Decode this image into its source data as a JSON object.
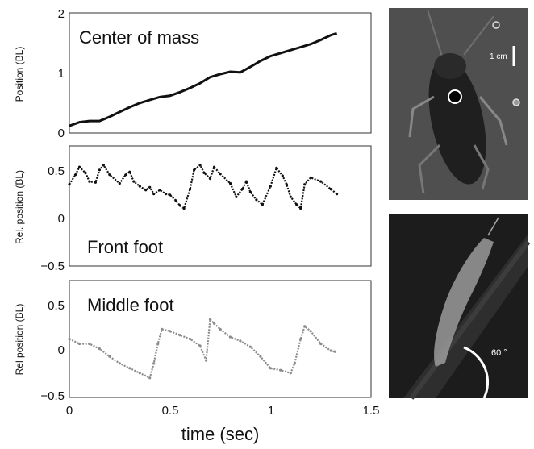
{
  "chart_data": [
    {
      "type": "line",
      "title": "Center of mass",
      "ylabel": "Position (BL)",
      "xlim": [
        0,
        1.5
      ],
      "ylim": [
        0,
        2
      ],
      "yticks": [
        "0",
        "1",
        "2"
      ],
      "series": [
        {
          "color": "#111111",
          "x": [
            0,
            0.05,
            0.1,
            0.15,
            0.2,
            0.25,
            0.3,
            0.35,
            0.4,
            0.45,
            0.5,
            0.55,
            0.6,
            0.65,
            0.7,
            0.75,
            0.8,
            0.85,
            0.9,
            0.95,
            1.0,
            1.05,
            1.1,
            1.15,
            1.2,
            1.25,
            1.3,
            1.33
          ],
          "y": [
            0.12,
            0.18,
            0.2,
            0.2,
            0.27,
            0.35,
            0.43,
            0.5,
            0.55,
            0.6,
            0.62,
            0.68,
            0.75,
            0.83,
            0.93,
            0.98,
            1.02,
            1.01,
            1.1,
            1.2,
            1.28,
            1.33,
            1.38,
            1.43,
            1.48,
            1.55,
            1.63,
            1.66
          ]
        }
      ]
    },
    {
      "type": "scatter",
      "title": "Front foot",
      "ylabel": "Rel. position (BL)",
      "xlim": [
        0,
        1.5
      ],
      "ylim": [
        -0.5,
        0.75
      ],
      "yticks": [
        "0.5",
        "0",
        "−0.5"
      ],
      "series": [
        {
          "color": "#111111",
          "x": [
            0,
            0.03,
            0.05,
            0.08,
            0.1,
            0.13,
            0.15,
            0.17,
            0.2,
            0.25,
            0.28,
            0.3,
            0.32,
            0.35,
            0.38,
            0.4,
            0.42,
            0.45,
            0.48,
            0.5,
            0.53,
            0.55,
            0.57,
            0.6,
            0.62,
            0.65,
            0.67,
            0.7,
            0.72,
            0.75,
            0.8,
            0.83,
            0.86,
            0.88,
            0.9,
            0.93,
            0.96,
            1.0,
            1.03,
            1.06,
            1.08,
            1.1,
            1.13,
            1.15,
            1.17,
            1.2,
            1.25,
            1.3,
            1.33
          ],
          "y": [
            0.35,
            0.45,
            0.53,
            0.47,
            0.38,
            0.37,
            0.5,
            0.55,
            0.45,
            0.36,
            0.45,
            0.48,
            0.38,
            0.33,
            0.29,
            0.32,
            0.25,
            0.29,
            0.25,
            0.24,
            0.18,
            0.13,
            0.1,
            0.3,
            0.5,
            0.55,
            0.47,
            0.41,
            0.53,
            0.46,
            0.36,
            0.22,
            0.3,
            0.38,
            0.27,
            0.19,
            0.14,
            0.33,
            0.52,
            0.44,
            0.35,
            0.22,
            0.14,
            0.1,
            0.35,
            0.42,
            0.38,
            0.3,
            0.25
          ]
        }
      ]
    },
    {
      "type": "scatter",
      "title": "Middle foot",
      "ylabel": "Rel position (BL)",
      "xlabel": "time (sec)",
      "xlim": [
        0,
        1.5
      ],
      "ylim": [
        -0.5,
        0.7
      ],
      "xticks": [
        "0",
        "0.5",
        "1",
        "1.5"
      ],
      "yticks": [
        "0.5",
        "0",
        "−0.5"
      ],
      "series": [
        {
          "color": "#8c8c8c",
          "x": [
            0,
            0.05,
            0.1,
            0.15,
            0.2,
            0.25,
            0.3,
            0.35,
            0.4,
            0.42,
            0.44,
            0.46,
            0.5,
            0.55,
            0.6,
            0.65,
            0.68,
            0.7,
            0.72,
            0.75,
            0.8,
            0.85,
            0.9,
            0.95,
            1.0,
            1.05,
            1.1,
            1.12,
            1.15,
            1.17,
            1.2,
            1.25,
            1.3,
            1.32
          ],
          "y": [
            0.1,
            0.05,
            0.05,
            0.0,
            -0.08,
            -0.15,
            -0.2,
            -0.25,
            -0.3,
            -0.15,
            0.05,
            0.2,
            0.18,
            0.14,
            0.1,
            0.03,
            -0.12,
            0.3,
            0.26,
            0.2,
            0.12,
            0.08,
            0.02,
            -0.08,
            -0.2,
            -0.22,
            -0.25,
            -0.15,
            0.1,
            0.23,
            0.18,
            0.05,
            -0.02,
            -0.03
          ]
        }
      ]
    }
  ],
  "photos": {
    "top": {
      "scale_label": "1 cm",
      "background": "#4a4a4a"
    },
    "bottom": {
      "angle_label": "60 °",
      "background": "#1c1c1c"
    }
  }
}
